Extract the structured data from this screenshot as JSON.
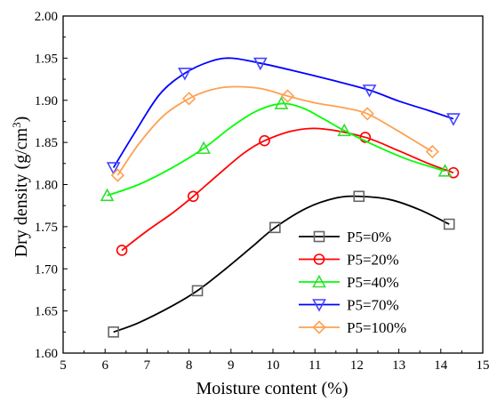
{
  "chart_data": {
    "type": "line",
    "title": "",
    "xlabel": "Moisture content (%)",
    "ylabel_main": "Dry density (g/cm",
    "ylabel_sup": "3",
    "ylabel_close": ")",
    "xlim": [
      5,
      15
    ],
    "ylim": [
      1.6,
      2.0
    ],
    "x_ticks": [
      "5",
      "6",
      "7",
      "8",
      "9",
      "10",
      "11",
      "12",
      "13",
      "14",
      "15"
    ],
    "y_ticks": [
      "1.60",
      "1.65",
      "1.70",
      "1.75",
      "1.80",
      "1.85",
      "1.90",
      "1.95",
      "2.00"
    ],
    "grid": false,
    "legend_position": "bottom-right",
    "series": [
      {
        "name": "P5=0%",
        "color": "#000000",
        "marker": "square",
        "marker_color": "#666666",
        "x": [
          6.2,
          8.2,
          10.05,
          12.05,
          14.2
        ],
        "y": [
          1.625,
          1.674,
          1.749,
          1.786,
          1.753
        ],
        "curve": [
          [
            6.2,
            1.625
          ],
          [
            6.8,
            1.636
          ],
          [
            7.6,
            1.656
          ],
          [
            8.2,
            1.674
          ],
          [
            8.8,
            1.697
          ],
          [
            9.5,
            1.726
          ],
          [
            10.05,
            1.749
          ],
          [
            10.8,
            1.772
          ],
          [
            11.5,
            1.784
          ],
          [
            12.05,
            1.786
          ],
          [
            12.8,
            1.782
          ],
          [
            13.5,
            1.77
          ],
          [
            14.2,
            1.753
          ]
        ]
      },
      {
        "name": "P5=20%",
        "color": "#ff0000",
        "marker": "circle",
        "marker_color": "#ff0000",
        "x": [
          6.4,
          8.1,
          9.8,
          12.2,
          14.3
        ],
        "y": [
          1.722,
          1.786,
          1.852,
          1.856,
          1.814
        ],
        "curve": [
          [
            6.4,
            1.722
          ],
          [
            7.0,
            1.745
          ],
          [
            7.6,
            1.766
          ],
          [
            8.1,
            1.786
          ],
          [
            8.7,
            1.812
          ],
          [
            9.3,
            1.837
          ],
          [
            9.8,
            1.852
          ],
          [
            10.5,
            1.864
          ],
          [
            11.2,
            1.866
          ],
          [
            12.2,
            1.856
          ],
          [
            13.0,
            1.84
          ],
          [
            13.7,
            1.825
          ],
          [
            14.3,
            1.814
          ]
        ]
      },
      {
        "name": "P5=40%",
        "color": "#00ff00",
        "marker": "triangle-up",
        "marker_color": "#33dd33",
        "x": [
          6.05,
          8.35,
          10.2,
          11.7,
          14.1
        ],
        "y": [
          1.787,
          1.843,
          1.896,
          1.864,
          1.816
        ],
        "curve": [
          [
            6.05,
            1.787
          ],
          [
            6.8,
            1.8
          ],
          [
            7.6,
            1.82
          ],
          [
            8.35,
            1.843
          ],
          [
            9.0,
            1.868
          ],
          [
            9.6,
            1.887
          ],
          [
            10.2,
            1.896
          ],
          [
            10.7,
            1.891
          ],
          [
            11.2,
            1.878
          ],
          [
            11.7,
            1.864
          ],
          [
            12.4,
            1.847
          ],
          [
            13.2,
            1.83
          ],
          [
            14.1,
            1.816
          ]
        ]
      },
      {
        "name": "P5=70%",
        "color": "#0000ff",
        "marker": "triangle-down",
        "marker_color": "#4444ff",
        "x": [
          6.2,
          7.9,
          9.7,
          12.3,
          14.3
        ],
        "y": [
          1.82,
          1.932,
          1.944,
          1.912,
          1.878
        ],
        "curve": [
          [
            6.2,
            1.82
          ],
          [
            6.7,
            1.861
          ],
          [
            7.3,
            1.907
          ],
          [
            7.9,
            1.932
          ],
          [
            8.5,
            1.946
          ],
          [
            9.0,
            1.95
          ],
          [
            9.7,
            1.944
          ],
          [
            10.5,
            1.935
          ],
          [
            11.4,
            1.924
          ],
          [
            12.3,
            1.912
          ],
          [
            13.0,
            1.899
          ],
          [
            13.7,
            1.888
          ],
          [
            14.3,
            1.878
          ]
        ]
      },
      {
        "name": "P5=100%",
        "color": "#ffa050",
        "marker": "diamond",
        "marker_color": "#ffa050",
        "x": [
          6.3,
          8.0,
          10.35,
          12.25,
          13.8
        ],
        "y": [
          1.811,
          1.902,
          1.905,
          1.884,
          1.839
        ],
        "curve": [
          [
            6.3,
            1.811
          ],
          [
            6.8,
            1.848
          ],
          [
            7.4,
            1.882
          ],
          [
            8.0,
            1.902
          ],
          [
            8.5,
            1.912
          ],
          [
            9.0,
            1.916
          ],
          [
            9.7,
            1.914
          ],
          [
            10.35,
            1.905
          ],
          [
            11.0,
            1.897
          ],
          [
            11.7,
            1.891
          ],
          [
            12.25,
            1.884
          ],
          [
            12.9,
            1.866
          ],
          [
            13.4,
            1.851
          ],
          [
            13.8,
            1.839
          ]
        ]
      }
    ]
  }
}
